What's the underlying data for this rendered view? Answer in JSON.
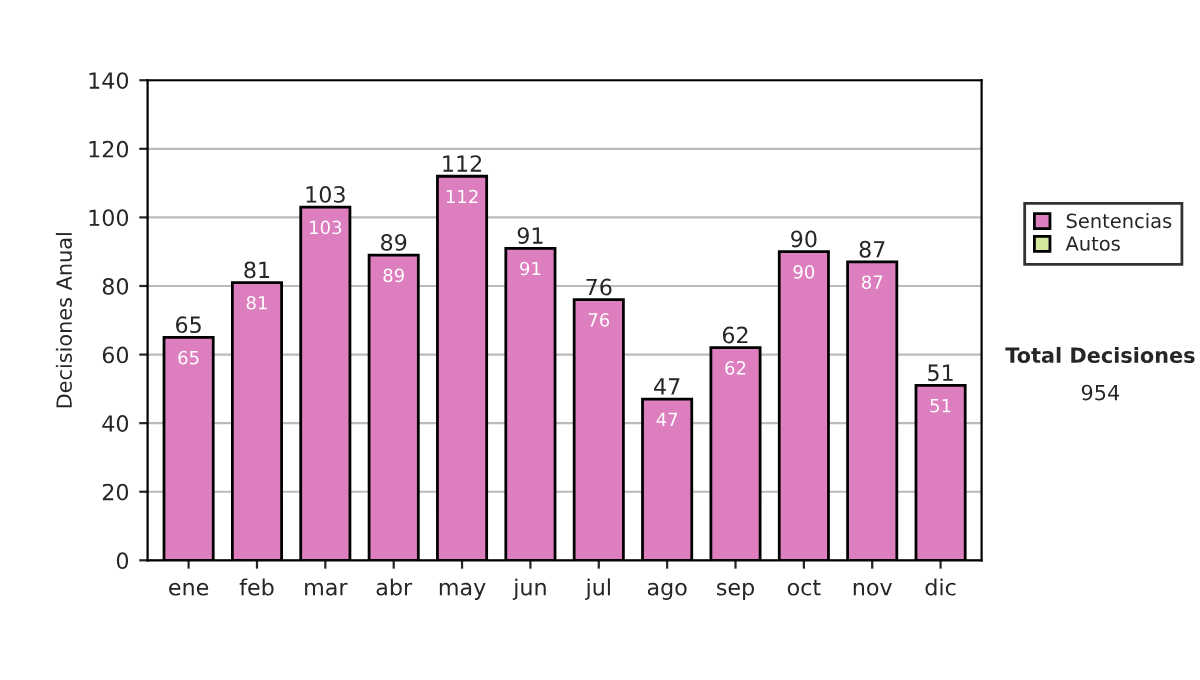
{
  "chart_data": {
    "type": "bar",
    "ylabel": "Decisiones Anual",
    "categories": [
      "ene",
      "feb",
      "mar",
      "abr",
      "may",
      "jun",
      "jul",
      "ago",
      "sep",
      "oct",
      "nov",
      "dic"
    ],
    "series": [
      {
        "name": "Sentencias",
        "color": "#dd7fbf",
        "values": [
          65,
          81,
          103,
          89,
          112,
          91,
          76,
          47,
          62,
          90,
          87,
          51
        ]
      },
      {
        "name": "Autos",
        "color": "#d4e8a0",
        "values": [
          null,
          null,
          null,
          null,
          null,
          null,
          null,
          null,
          null,
          null,
          null,
          null
        ]
      }
    ],
    "ylim": [
      0,
      140
    ],
    "yticks": [
      0,
      20,
      40,
      60,
      80,
      100,
      120,
      140
    ],
    "stacked": true,
    "totals": [
      "65",
      "81",
      "103",
      "89",
      "112",
      "91",
      "76",
      "47",
      "62",
      "90",
      "87",
      "51"
    ],
    "grid": "y",
    "legend": "right",
    "data_labels": true,
    "annotations": [
      "Total Decisiones",
      "954"
    ]
  }
}
